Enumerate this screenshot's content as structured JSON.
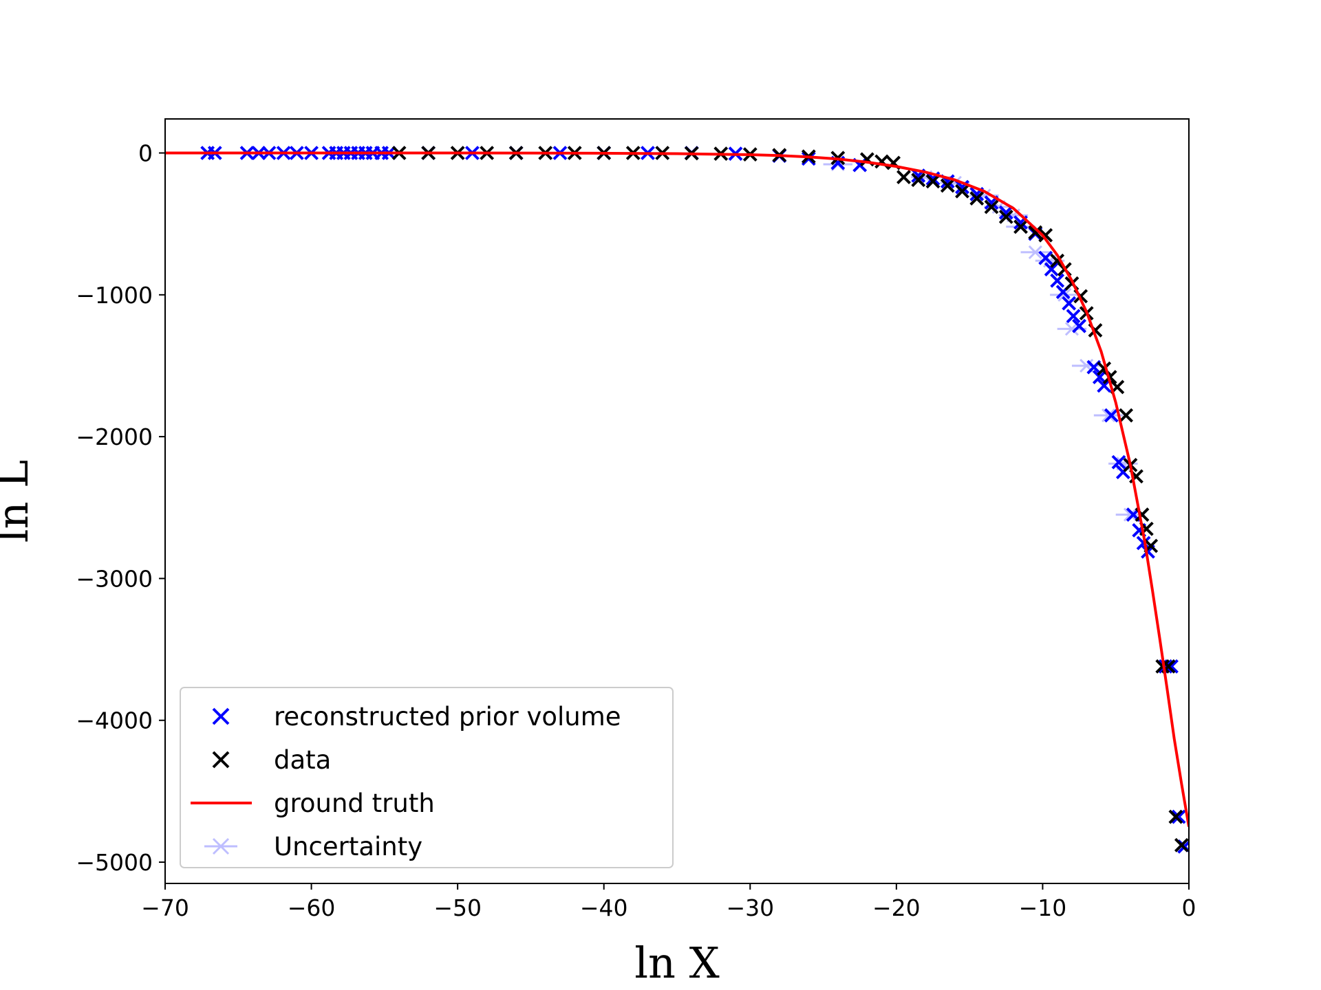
{
  "chart_data": {
    "type": "scatter",
    "xlabel": "ln X",
    "ylabel": "ln L",
    "xlim": [
      -70,
      0
    ],
    "ylim": [
      -5150,
      240
    ],
    "x_ticks": [
      -70,
      -60,
      -50,
      -40,
      -30,
      -20,
      -10,
      0
    ],
    "y_ticks": [
      0,
      -1000,
      -2000,
      -3000,
      -4000,
      -5000
    ],
    "x_tick_labels": [
      "−70",
      "−60",
      "−50",
      "−40",
      "−30",
      "−20",
      "−10",
      "0"
    ],
    "y_tick_labels": [
      "0",
      "−1000",
      "−2000",
      "−3000",
      "−4000",
      "−5000"
    ],
    "grid": false,
    "legend_position": "lower-left",
    "series": [
      {
        "name": "reconstructed prior volume",
        "color": "#0000ff",
        "marker": "x",
        "points": [
          [
            -67.1,
            0
          ],
          [
            -66.6,
            0
          ],
          [
            -64.4,
            0
          ],
          [
            -63.6,
            0
          ],
          [
            -62.9,
            0
          ],
          [
            -61.9,
            0
          ],
          [
            -61.0,
            0
          ],
          [
            -60.0,
            0
          ],
          [
            -58.8,
            0
          ],
          [
            -58.3,
            0
          ],
          [
            -57.8,
            0
          ],
          [
            -57.3,
            0
          ],
          [
            -56.8,
            0
          ],
          [
            -56.3,
            0
          ],
          [
            -55.8,
            0
          ],
          [
            -55.2,
            0
          ],
          [
            -54.7,
            0
          ],
          [
            -52,
            0
          ],
          [
            -49,
            0
          ],
          [
            -46,
            0
          ],
          [
            -43,
            0
          ],
          [
            -40,
            0
          ],
          [
            -37,
            0
          ],
          [
            -34,
            0
          ],
          [
            -31,
            -5
          ],
          [
            -28,
            -20
          ],
          [
            -26,
            -40
          ],
          [
            -24,
            -70
          ],
          [
            -22.5,
            -85
          ],
          [
            -18.5,
            -160
          ],
          [
            -17.5,
            -180
          ],
          [
            -16.5,
            -200
          ],
          [
            -15.5,
            -240
          ],
          [
            -14.5,
            -290
          ],
          [
            -13.5,
            -350
          ],
          [
            -12.5,
            -420
          ],
          [
            -11.5,
            -490
          ],
          [
            -10.5,
            -570
          ],
          [
            -9.8,
            -740
          ],
          [
            -9.4,
            -820
          ],
          [
            -9.0,
            -900
          ],
          [
            -8.6,
            -980
          ],
          [
            -8.2,
            -1060
          ],
          [
            -7.9,
            -1150
          ],
          [
            -7.5,
            -1220
          ],
          [
            -6.5,
            -1510
          ],
          [
            -6.1,
            -1580
          ],
          [
            -5.8,
            -1640
          ],
          [
            -5.3,
            -1850
          ],
          [
            -4.8,
            -2180
          ],
          [
            -4.5,
            -2250
          ],
          [
            -3.8,
            -2550
          ],
          [
            -3.4,
            -2660
          ],
          [
            -3.1,
            -2750
          ],
          [
            -2.8,
            -2810
          ],
          [
            -1.6,
            -3620
          ],
          [
            -1.2,
            -3620
          ],
          [
            -0.7,
            -4680
          ],
          [
            -0.3,
            -4890
          ]
        ]
      },
      {
        "name": "data",
        "color": "#000000",
        "marker": "x",
        "points": [
          [
            -54,
            0
          ],
          [
            -52,
            0
          ],
          [
            -50,
            0
          ],
          [
            -48,
            0
          ],
          [
            -46,
            0
          ],
          [
            -44,
            0
          ],
          [
            -42,
            0
          ],
          [
            -40,
            0
          ],
          [
            -38,
            0
          ],
          [
            -36,
            0
          ],
          [
            -34,
            -2
          ],
          [
            -32,
            -5
          ],
          [
            -30,
            -10
          ],
          [
            -28,
            -15
          ],
          [
            -26,
            -25
          ],
          [
            -24,
            -35
          ],
          [
            -22,
            -45
          ],
          [
            -21,
            -60
          ],
          [
            -20.2,
            -70
          ],
          [
            -19.5,
            -170
          ],
          [
            -18.5,
            -190
          ],
          [
            -17.5,
            -200
          ],
          [
            -16.5,
            -230
          ],
          [
            -15.5,
            -270
          ],
          [
            -14.5,
            -320
          ],
          [
            -13.5,
            -380
          ],
          [
            -12.5,
            -450
          ],
          [
            -11.5,
            -520
          ],
          [
            -10.5,
            -560
          ],
          [
            -9.8,
            -580
          ],
          [
            -9.0,
            -760
          ],
          [
            -8.5,
            -820
          ],
          [
            -8.0,
            -920
          ],
          [
            -7.4,
            -1010
          ],
          [
            -7.0,
            -1130
          ],
          [
            -6.4,
            -1250
          ],
          [
            -5.8,
            -1520
          ],
          [
            -5.4,
            -1580
          ],
          [
            -4.9,
            -1650
          ],
          [
            -4.3,
            -1850
          ],
          [
            -4.0,
            -2200
          ],
          [
            -3.6,
            -2280
          ],
          [
            -3.2,
            -2550
          ],
          [
            -2.9,
            -2650
          ],
          [
            -2.6,
            -2770
          ],
          [
            -1.8,
            -3620
          ],
          [
            -1.4,
            -3620
          ],
          [
            -0.9,
            -4680
          ],
          [
            -0.5,
            -4880
          ]
        ]
      },
      {
        "name": "ground truth",
        "color": "#ff0000",
        "marker": "line",
        "points": [
          [
            -70,
            0
          ],
          [
            -60,
            0
          ],
          [
            -50,
            0
          ],
          [
            -40,
            -2
          ],
          [
            -35,
            -5
          ],
          [
            -30,
            -12
          ],
          [
            -28,
            -18
          ],
          [
            -26,
            -28
          ],
          [
            -24,
            -42
          ],
          [
            -22,
            -65
          ],
          [
            -20,
            -95
          ],
          [
            -18,
            -135
          ],
          [
            -16,
            -190
          ],
          [
            -14,
            -270
          ],
          [
            -12,
            -390
          ],
          [
            -10,
            -580
          ],
          [
            -9,
            -720
          ],
          [
            -8,
            -900
          ],
          [
            -7,
            -1120
          ],
          [
            -6,
            -1400
          ],
          [
            -5,
            -1760
          ],
          [
            -4,
            -2200
          ],
          [
            -3,
            -2750
          ],
          [
            -2.5,
            -3080
          ],
          [
            -2,
            -3420
          ],
          [
            -1.5,
            -3770
          ],
          [
            -1,
            -4130
          ],
          [
            -0.5,
            -4450
          ],
          [
            0,
            -4750
          ]
        ]
      },
      {
        "name": "Uncertainty",
        "color": "#0000ff",
        "opacity": 0.25,
        "marker": "errorbar",
        "points": [
          [
            -24,
            -80,
            1.0
          ],
          [
            -18,
            -170,
            1.0
          ],
          [
            -16,
            -210,
            1.0
          ],
          [
            -14,
            -300,
            1.0
          ],
          [
            -13,
            -380,
            1.0
          ],
          [
            -12,
            -440,
            1.0
          ],
          [
            -11.5,
            -520,
            1.0
          ],
          [
            -10.5,
            -700,
            1.0
          ],
          [
            -9.5,
            -760,
            1.0
          ],
          [
            -8.5,
            -1000,
            1.0
          ],
          [
            -8,
            -1240,
            1.0
          ],
          [
            -7,
            -1500,
            1.0
          ],
          [
            -5.5,
            -1850,
            1.0
          ],
          [
            -4.5,
            -2190,
            1.0
          ],
          [
            -4,
            -2550,
            1.0
          ]
        ]
      }
    ],
    "legend": [
      {
        "label": "reconstructed prior volume",
        "color": "#0000ff",
        "marker": "x"
      },
      {
        "label": "data",
        "color": "#000000",
        "marker": "x"
      },
      {
        "label": "ground truth",
        "color": "#ff0000",
        "marker": "line"
      },
      {
        "label": "Uncertainty",
        "color": "#0000ff",
        "opacity": 0.25,
        "marker": "errorbar"
      }
    ]
  }
}
